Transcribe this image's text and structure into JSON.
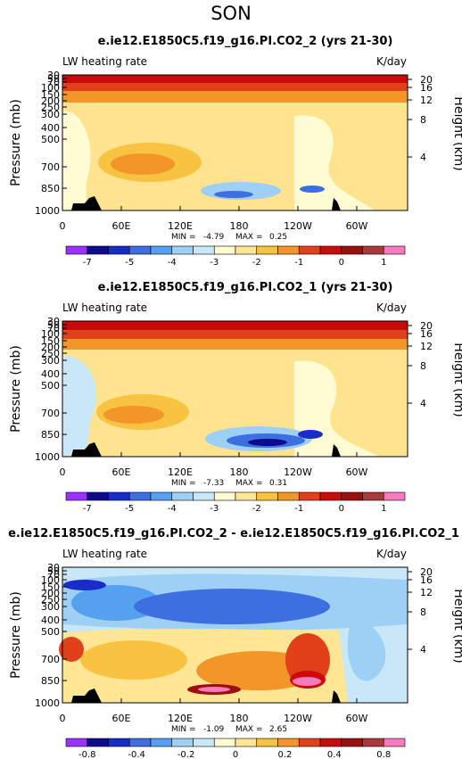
{
  "page": {
    "title": "SON"
  },
  "palettes": {
    "abs": [
      "#9b30ff",
      "#0b0b8c",
      "#1a2cc8",
      "#3d6fe0",
      "#56a0f0",
      "#9ed0f5",
      "#c8e8f8",
      "#fffbd2",
      "#ffe694",
      "#f7c340",
      "#f2962a",
      "#e2401a",
      "#cc0a0a",
      "#9b0f0f",
      "#aa3a3a",
      "#f57abf"
    ],
    "diff": [
      "#9b30ff",
      "#0b0b8c",
      "#1a2cc8",
      "#3d6fe0",
      "#56a0f0",
      "#9ed0f5",
      "#c8e8f8",
      "#fffbd2",
      "#ffe694",
      "#f7c340",
      "#f2962a",
      "#e2401a",
      "#cc0a0a",
      "#9b0f0f",
      "#aa3a3a",
      "#f57abf"
    ]
  },
  "chart_data": [
    {
      "type": "heatmap",
      "title": "e.ie12.E1850C5.f19_g16.PI.CO2_2 (yrs 21-30)",
      "left_label": "LW heating rate",
      "units": "K/day",
      "ylabel": "Pressure (mb)",
      "y2label": "Height (km)",
      "x_ticks": [
        "0",
        "60E",
        "120E",
        "180",
        "120W",
        "60W"
      ],
      "y_ticks": [
        "30",
        "50",
        "70",
        "100",
        "150",
        "200",
        "250",
        "300",
        "400",
        "500",
        "700",
        "850",
        "1000"
      ],
      "y2_ticks": [
        "20",
        "16",
        "12",
        "8",
        "4"
      ],
      "stats": {
        "min_label": "MIN =",
        "min": "-4.79",
        "max_label": "MAX =",
        "max": "0.25"
      },
      "colorbar_labels": [
        "-7",
        "-5",
        "-4",
        "-3",
        "-2",
        "-1",
        "0",
        "1"
      ],
      "palette": "abs"
    },
    {
      "type": "heatmap",
      "title": "e.ie12.E1850C5.f19_g16.PI.CO2_1 (yrs 21-30)",
      "left_label": "LW heating rate",
      "units": "K/day",
      "ylabel": "Pressure (mb)",
      "y2label": "Height (km)",
      "x_ticks": [
        "0",
        "60E",
        "120E",
        "180",
        "120W",
        "60W"
      ],
      "y_ticks": [
        "30",
        "50",
        "70",
        "100",
        "150",
        "200",
        "250",
        "300",
        "400",
        "500",
        "700",
        "850",
        "1000"
      ],
      "y2_ticks": [
        "20",
        "16",
        "12",
        "8",
        "4"
      ],
      "stats": {
        "min_label": "MIN =",
        "min": "-7.33",
        "max_label": "MAX =",
        "max": "0.31"
      },
      "colorbar_labels": [
        "-7",
        "-5",
        "-4",
        "-3",
        "-2",
        "-1",
        "0",
        "1"
      ],
      "palette": "abs"
    },
    {
      "type": "heatmap",
      "title": "e.ie12.E1850C5.f19_g16.PI.CO2_2 - e.ie12.E1850C5.f19_g16.PI.CO2_1",
      "left_label": "LW heating rate",
      "units": "K/day",
      "ylabel": "Pressure (mb)",
      "y2label": "Height (km)",
      "x_ticks": [
        "0",
        "60E",
        "120E",
        "180",
        "120W",
        "60W"
      ],
      "y_ticks": [
        "30",
        "50",
        "70",
        "100",
        "150",
        "200",
        "250",
        "300",
        "400",
        "500",
        "700",
        "850",
        "1000"
      ],
      "y2_ticks": [
        "20",
        "16",
        "12",
        "8",
        "4"
      ],
      "stats": {
        "min_label": "MIN =",
        "min": "-1.09",
        "max_label": "MAX =",
        "max": "2.65"
      },
      "colorbar_labels": [
        "-0.8",
        "-0.4",
        "-0.2",
        "0",
        "0.2",
        "0.4",
        "0.8"
      ],
      "palette": "diff"
    }
  ]
}
